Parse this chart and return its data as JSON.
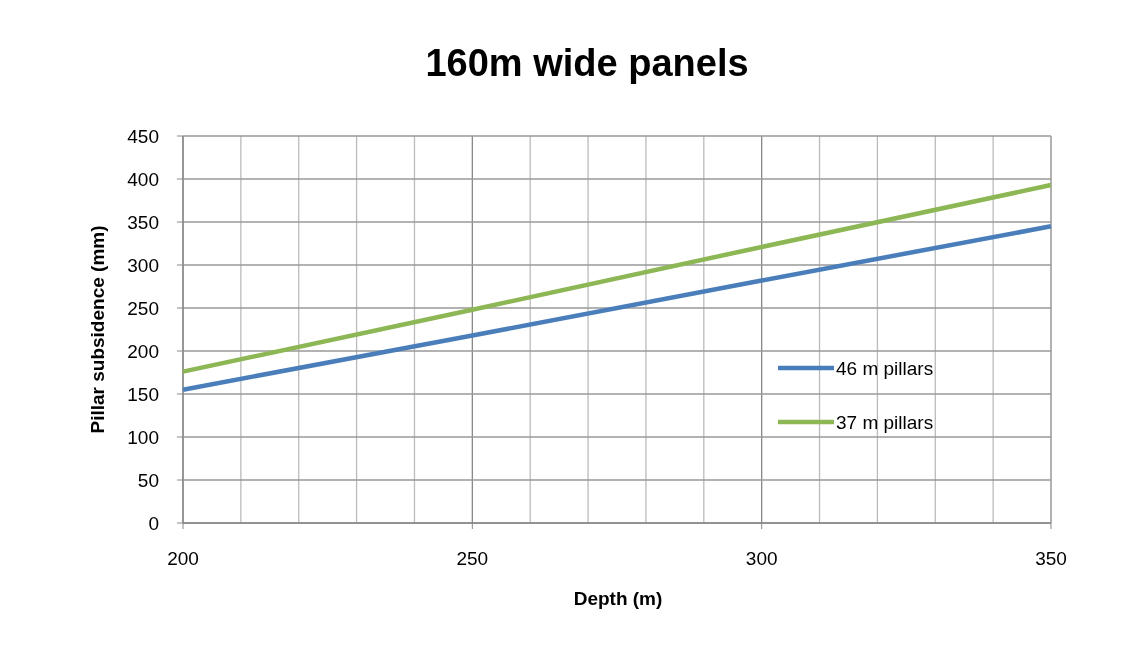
{
  "chart_data": {
    "type": "line",
    "title": "160m wide panels",
    "xlabel": "Depth (m)",
    "ylabel": "Pillar subsidence (mm)",
    "x": [
      200,
      250,
      300,
      350
    ],
    "series": [
      {
        "name": "46 m pillars",
        "color": "#4a7ebb",
        "values": [
          155,
          218,
          282,
          345
        ]
      },
      {
        "name": "37 m pillars",
        "color": "#8db654",
        "values": [
          176,
          248,
          321,
          393
        ]
      }
    ],
    "xlim": [
      200,
      350
    ],
    "xticks": [
      200,
      {
        "value": 210,
        "label": null
      },
      {
        "value": 220,
        "label": null
      },
      {
        "value": 230,
        "label": null
      },
      {
        "value": 240,
        "label": null
      },
      250,
      {
        "value": 260,
        "label": null
      },
      {
        "value": 270,
        "label": null
      },
      {
        "value": 280,
        "label": null
      },
      {
        "value": 290,
        "label": null
      },
      300,
      {
        "value": 310,
        "label": null
      },
      {
        "value": 320,
        "label": null
      },
      {
        "value": 330,
        "label": null
      },
      {
        "value": 340,
        "label": null
      },
      350
    ],
    "ylim": [
      0,
      450
    ],
    "yticks": [
      0,
      50,
      100,
      150,
      200,
      250,
      300,
      350,
      400,
      450
    ],
    "grid": true,
    "legend": "right",
    "marker": "none",
    "line_style": "solid"
  }
}
